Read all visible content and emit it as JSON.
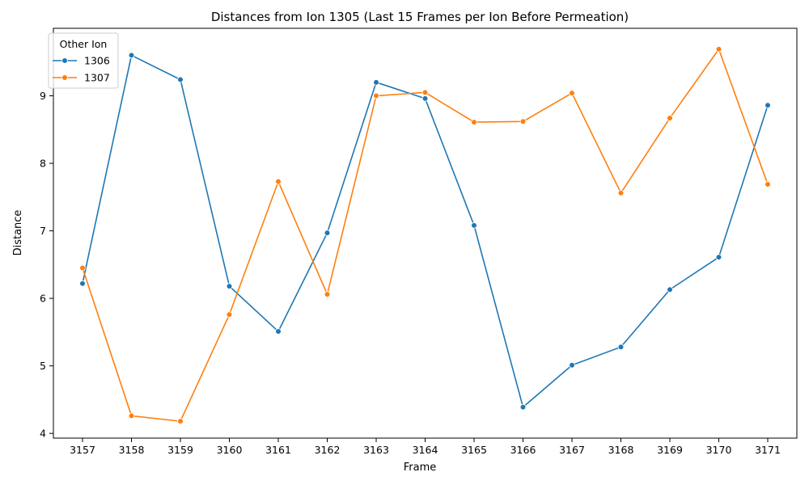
{
  "chart_data": {
    "type": "line",
    "title": "Distances from Ion 1305 (Last 15 Frames per Ion Before Permeation)",
    "xlabel": "Frame",
    "ylabel": "Distance",
    "categories": [
      "3157",
      "3158",
      "3159",
      "3160",
      "3161",
      "3162",
      "3163",
      "3164",
      "3165",
      "3166",
      "3167",
      "3168",
      "3169",
      "3170",
      "3171"
    ],
    "ylim": [
      3.93,
      10.0
    ],
    "yticks": [
      4,
      5,
      6,
      7,
      8,
      9
    ],
    "grid": false,
    "legend": {
      "title": "Other Ion",
      "placement": "top-left"
    },
    "series": [
      {
        "name": "1306",
        "color": "#1f77b4",
        "values": [
          6.22,
          9.6,
          9.24,
          6.18,
          5.51,
          6.97,
          9.2,
          8.96,
          7.08,
          4.39,
          5.01,
          5.28,
          6.13,
          6.61,
          8.86
        ]
      },
      {
        "name": "1307",
        "color": "#ff7f0e",
        "values": [
          6.45,
          4.26,
          4.18,
          5.76,
          7.73,
          6.06,
          9.0,
          9.05,
          8.61,
          8.62,
          9.04,
          7.56,
          8.67,
          9.69,
          7.69
        ]
      }
    ]
  }
}
